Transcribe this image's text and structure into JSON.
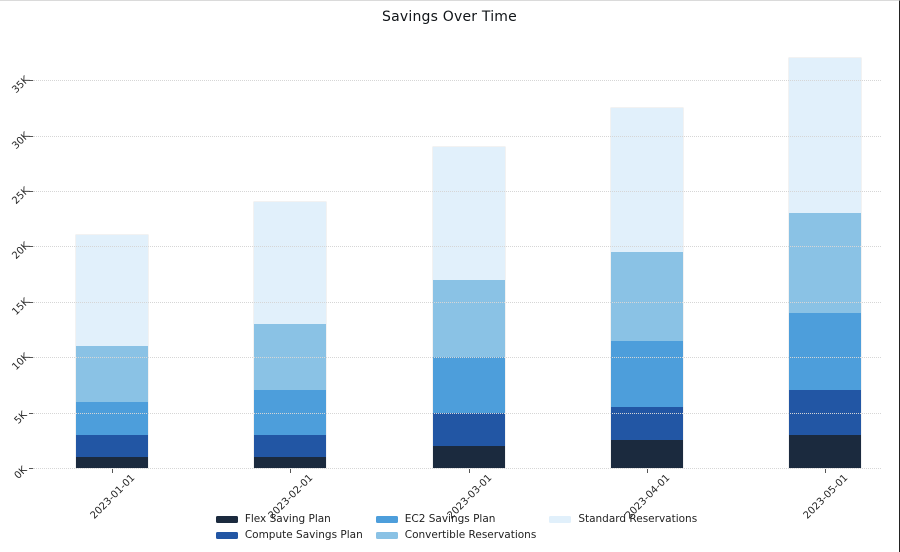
{
  "window": {
    "background": "#ffffff",
    "border_top_color": "#dadada",
    "border_right_color": "#222222"
  },
  "chart_data": {
    "type": "bar",
    "stacked": true,
    "title": "Savings Over Time",
    "categories": [
      "2023-01-01",
      "2023-02-01",
      "2023-03-01",
      "2023-04-01",
      "2023-05-01"
    ],
    "series": [
      {
        "name": "Flex Saving Plan",
        "color": "#1b2a3e",
        "values": [
          1000,
          1000,
          2000,
          2500,
          3000
        ]
      },
      {
        "name": "Compute Savings Plan",
        "color": "#2256a4",
        "values": [
          2000,
          2000,
          3000,
          3000,
          4000
        ]
      },
      {
        "name": "EC2 Savings Plan",
        "color": "#4d9edb",
        "values": [
          3000,
          4000,
          5000,
          6000,
          7000
        ]
      },
      {
        "name": "Convertible Reservations",
        "color": "#8ac2e5",
        "values": [
          5000,
          6000,
          7000,
          8000,
          9000
        ]
      },
      {
        "name": "Standard Reservations",
        "color": "#e1f0fb",
        "values": [
          10000,
          11000,
          12000,
          13000,
          14000
        ]
      }
    ],
    "stack_totals": [
      21000,
      24000,
      29000,
      32500,
      37000
    ],
    "xlabel": "",
    "ylabel": "",
    "ylim": [
      0,
      38000
    ],
    "ytick_labels": [
      "0K",
      "5K",
      "10K",
      "15K",
      "20K",
      "25K",
      "30K",
      "35K"
    ],
    "ytick_values": [
      0,
      5000,
      10000,
      15000,
      20000,
      25000,
      30000,
      35000
    ],
    "xtick_rotation_deg": -45,
    "ytick_rotation_deg": -45,
    "grid": "horizontal-dotted",
    "legend_position": "bottom-center",
    "legend_columns": 3
  },
  "colors": {
    "gridline": "#d6d6d6",
    "tick_mark": "#555555",
    "tick_label": "#262626",
    "title": "#101418",
    "legend_label": "#1f1f1f"
  }
}
